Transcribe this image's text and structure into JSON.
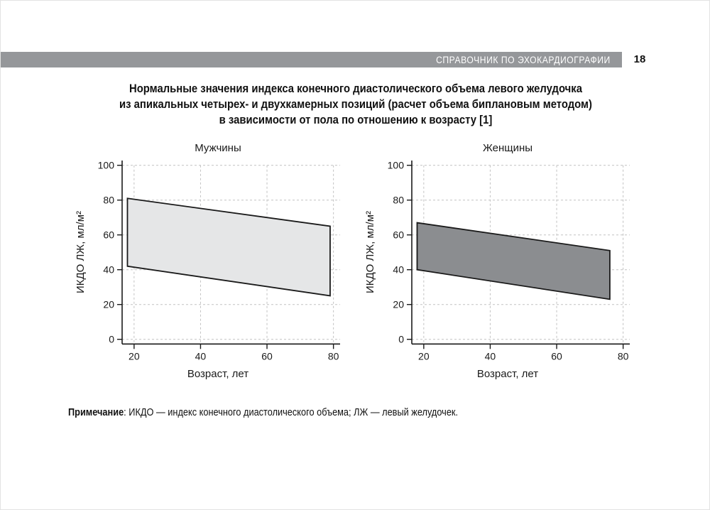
{
  "header": {
    "book_title": "СПРАВОЧНИК ПО ЭХОКАРДИОГРАФИИ",
    "page_number": "18",
    "bar_color": "#95979a",
    "bar_text_color": "#ffffff"
  },
  "figure_title": {
    "lines": [
      "Нормальные значения индекса конечного диастолического объема левого желудочка",
      "из апикальных четырех- и двухкамерных позиций (расчет объема биплановым методом)",
      "в зависимости от пола по отношению к возрасту [1]"
    ]
  },
  "note": {
    "label": "Примечание",
    "text": ": ИКДО — индекс конечного диастолического объема; ЛЖ — левый желудочек."
  },
  "chart_data": [
    {
      "type": "area",
      "title": "Мужчины",
      "xlabel": "Возраст, лет",
      "ylabel": "ИКДО ЛЖ, мл/м²",
      "xlim": [
        16.4,
        82
      ],
      "ylim": [
        0,
        100
      ],
      "xticks": [
        20,
        40,
        60,
        80
      ],
      "yticks": [
        0,
        20,
        40,
        60,
        80,
        100
      ],
      "grid": true,
      "legend": "none",
      "band": {
        "age": [
          18,
          79
        ],
        "upper": [
          81,
          65
        ],
        "lower": [
          42,
          25
        ]
      },
      "fill_color": "#e5e6e7",
      "stroke_color": "#1a1a1a",
      "grid_color": "#c2c2c2"
    },
    {
      "type": "area",
      "title": "Женщины",
      "xlabel": "Возраст, лет",
      "ylabel": "ИКДО ЛЖ, мл/м²",
      "xlim": [
        16.4,
        82
      ],
      "ylim": [
        0,
        100
      ],
      "xticks": [
        20,
        40,
        60,
        80
      ],
      "yticks": [
        0,
        20,
        40,
        60,
        80,
        100
      ],
      "grid": true,
      "legend": "none",
      "band": {
        "age": [
          18,
          76
        ],
        "upper": [
          67,
          51
        ],
        "lower": [
          40,
          23
        ]
      },
      "fill_color": "#8b8d90",
      "stroke_color": "#1a1a1a",
      "grid_color": "#c2c2c2"
    }
  ]
}
